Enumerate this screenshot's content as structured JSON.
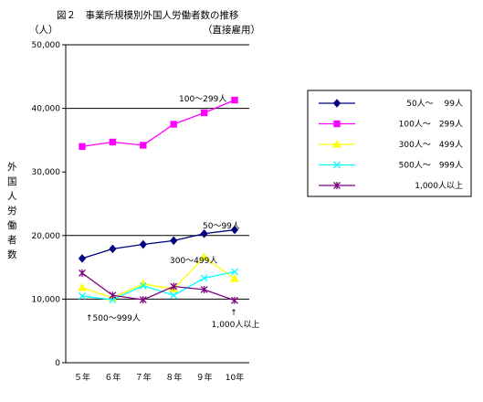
{
  "chart_data": {
    "type": "line",
    "title": "図２　事業所規模別外国人労働者数の推移",
    "subtitle": "（直接雇用）",
    "unit_label": "（人）",
    "ylabel": "外国人労働者数",
    "xlabel": "",
    "categories": [
      "５年",
      "６年",
      "７年",
      "８年",
      "９年",
      "10年"
    ],
    "ylim": [
      0,
      50000
    ],
    "yticks": [
      0,
      10000,
      20000,
      30000,
      40000,
      50000
    ],
    "ytick_labels": [
      "0",
      "10,000",
      "20,000",
      "30,000",
      "40,000",
      "50,000"
    ],
    "grid": "horizontal major lines at 10,000 / 20,000 / 40,000 / 50,000",
    "legend_position": "right",
    "series": [
      {
        "name": "50人～　 99人",
        "color": "#000080",
        "marker": "diamond",
        "values": [
          16400,
          17900,
          18600,
          19200,
          20300,
          20900
        ]
      },
      {
        "name": "100人～　299人",
        "color": "#ff00ff",
        "marker": "square",
        "values": [
          34000,
          34700,
          34200,
          37500,
          39300,
          41300
        ]
      },
      {
        "name": "300人～　499人",
        "color": "#ffff00",
        "marker": "triangle",
        "values": [
          11800,
          10200,
          12400,
          11600,
          16600,
          13200
        ]
      },
      {
        "name": "500人～　999人",
        "color": "#00ffff",
        "marker": "x",
        "values": [
          10500,
          9900,
          12100,
          10600,
          13300,
          14300
        ]
      },
      {
        "name": "1,000人以上",
        "color": "#800080",
        "marker": "asterisk",
        "values": [
          14100,
          10600,
          9900,
          12000,
          11500,
          9800
        ]
      }
    ],
    "annotations": [
      {
        "text": "100～299人",
        "series": 1
      },
      {
        "text": "50～99人",
        "series": 0
      },
      {
        "text": "300～499人",
        "series": 2
      },
      {
        "text": "↑500～999人",
        "series": 3
      },
      {
        "text": "↑",
        "series": 4
      },
      {
        "text": "1,000人以上",
        "series": 4
      }
    ]
  }
}
